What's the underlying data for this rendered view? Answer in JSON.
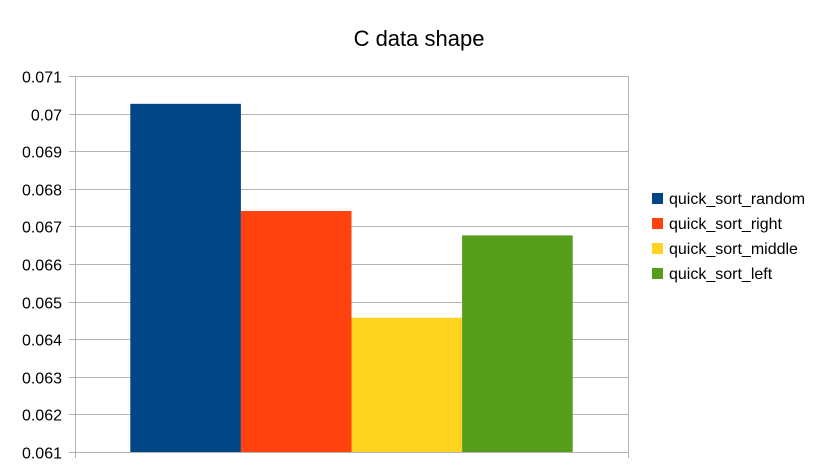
{
  "chart_data": {
    "type": "bar",
    "title": "C data shape",
    "xlabel": "",
    "ylabel": "",
    "categories": [
      ""
    ],
    "ylim": [
      0.061,
      0.071
    ],
    "yticks": [
      0.061,
      0.062,
      0.063,
      0.064,
      0.065,
      0.066,
      0.067,
      0.068,
      0.069,
      0.07,
      0.071
    ],
    "ytick_labels": [
      "0.061",
      "0.062",
      "0.063",
      "0.064",
      "0.065",
      "0.066",
      "0.067",
      "0.068",
      "0.069",
      "0.07",
      "0.071"
    ],
    "grid": true,
    "legend_position": "right",
    "series": [
      {
        "name": "quick_sort_random",
        "values": [
          0.07026
        ],
        "color": "#004586"
      },
      {
        "name": "quick_sort_right",
        "values": [
          0.06741
        ],
        "color": "#ff420e"
      },
      {
        "name": "quick_sort_middle",
        "values": [
          0.06457
        ],
        "color": "#ffd320"
      },
      {
        "name": "quick_sort_left",
        "values": [
          0.06676
        ],
        "color": "#579d1c"
      }
    ]
  }
}
